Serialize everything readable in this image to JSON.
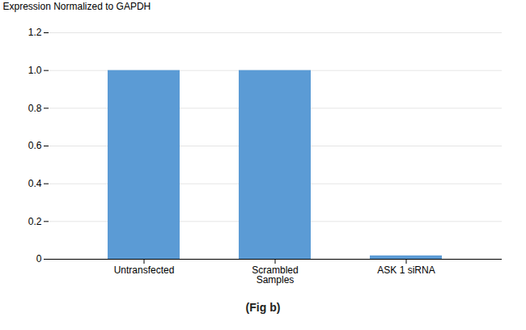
{
  "chart_data": {
    "type": "bar",
    "title": "(Fig  b)",
    "categories": [
      "Untransfected",
      "Scrambled\nSamples",
      "ASK 1 siRNA"
    ],
    "values": [
      1.0,
      1.0,
      0.018
    ],
    "color": "#5b9bd5",
    "ylabel": "Expression Normalized to GAPDH",
    "ylim": [
      0,
      1.2
    ],
    "yticks": [
      0,
      0.2,
      0.4,
      0.6,
      0.8,
      {
        "value": 1.0,
        "label": "1.0"
      },
      1.2
    ],
    "grid": true
  }
}
